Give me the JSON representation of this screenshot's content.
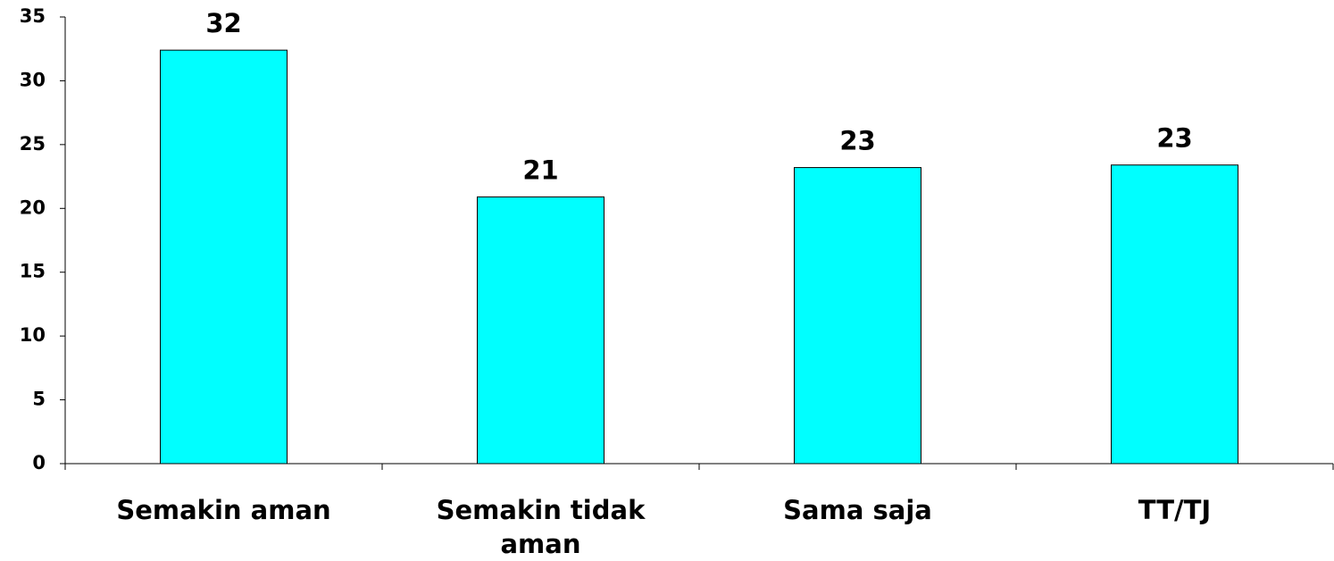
{
  "chart_data": {
    "type": "bar",
    "categories": [
      "Semakin aman",
      "Semakin tidak aman",
      "Sama saja",
      "TT/TJ"
    ],
    "values": [
      32.4,
      20.9,
      23.2,
      23.4
    ],
    "value_labels": [
      "32",
      "21",
      "23",
      "23"
    ],
    "color": "#00ffff",
    "ylim": [
      0,
      35
    ],
    "yticks": [
      0,
      5,
      10,
      15,
      20,
      25,
      30,
      35
    ],
    "grid": false
  }
}
